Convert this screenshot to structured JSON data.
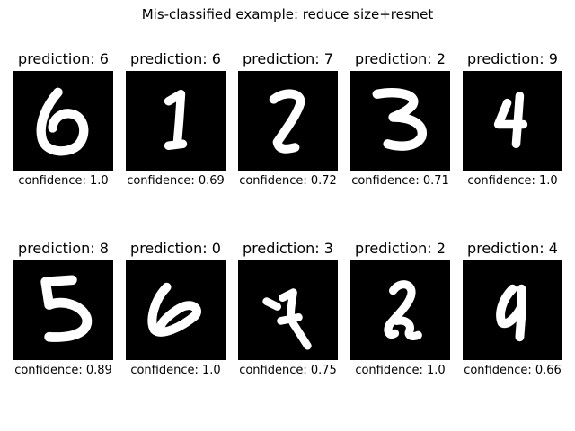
{
  "figure": {
    "title": "Mis-classified example: reduce size+resnet"
  },
  "examples": [
    {
      "prediction_label": "prediction: 6",
      "confidence_label": "confidence: 1.0",
      "prediction": 6,
      "confidence": 1.0,
      "digit_icon": "handwritten-0-icon"
    },
    {
      "prediction_label": "prediction: 6",
      "confidence_label": "confidence: 0.69",
      "prediction": 6,
      "confidence": 0.69,
      "digit_icon": "handwritten-1-icon"
    },
    {
      "prediction_label": "prediction: 7",
      "confidence_label": "confidence: 0.72",
      "prediction": 7,
      "confidence": 0.72,
      "digit_icon": "handwritten-2-icon"
    },
    {
      "prediction_label": "prediction: 2",
      "confidence_label": "confidence: 0.71",
      "prediction": 2,
      "confidence": 0.71,
      "digit_icon": "handwritten-3-icon"
    },
    {
      "prediction_label": "prediction: 9",
      "confidence_label": "confidence: 1.0",
      "prediction": 9,
      "confidence": 1.0,
      "digit_icon": "handwritten-4-icon"
    },
    {
      "prediction_label": "prediction: 8",
      "confidence_label": "confidence: 0.89",
      "prediction": 8,
      "confidence": 0.89,
      "digit_icon": "handwritten-5-icon"
    },
    {
      "prediction_label": "prediction: 0",
      "confidence_label": "confidence: 1.0",
      "prediction": 0,
      "confidence": 1.0,
      "digit_icon": "handwritten-6-icon"
    },
    {
      "prediction_label": "prediction: 3",
      "confidence_label": "confidence: 0.75",
      "prediction": 3,
      "confidence": 0.75,
      "digit_icon": "handwritten-7-icon"
    },
    {
      "prediction_label": "prediction: 2",
      "confidence_label": "confidence: 1.0",
      "prediction": 2,
      "confidence": 1.0,
      "digit_icon": "handwritten-8-icon"
    },
    {
      "prediction_label": "prediction: 4",
      "confidence_label": "confidence: 0.66",
      "prediction": 4,
      "confidence": 0.66,
      "digit_icon": "handwritten-9-icon"
    }
  ]
}
